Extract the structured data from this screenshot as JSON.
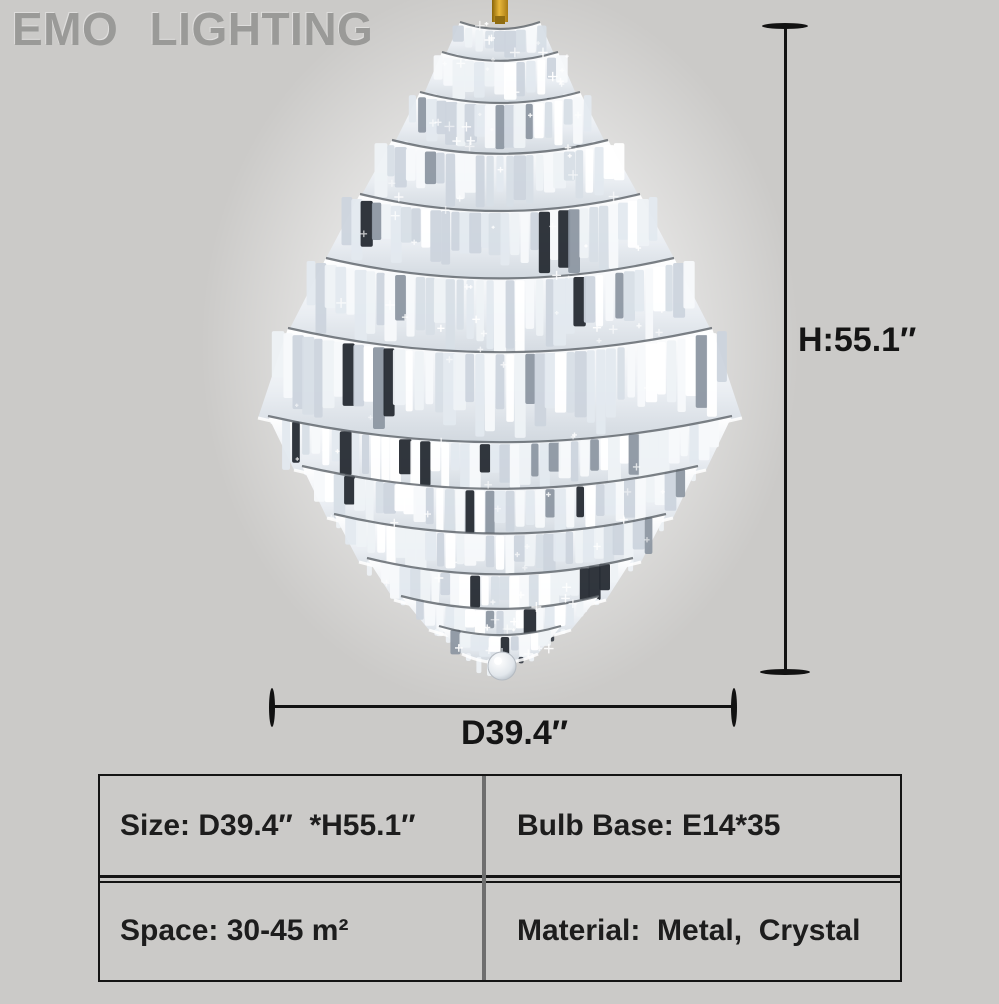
{
  "brand": {
    "logo_text": "EMO LIGHTING"
  },
  "dimensions": {
    "height_label": "H:55.1″",
    "diameter_label": "D39.4″"
  },
  "spec_table": {
    "size": "Size: D39.4″  *H55.1″",
    "bulb_base": "Bulb Base: E14*35",
    "space": "Space: 30-45 m²",
    "material": "Material:  Metal,  Crystal"
  },
  "colors": {
    "background": "#cbcac8",
    "dimension_line": "#121212",
    "text": "#1a1a1a",
    "logo": "#9a9a98",
    "table_column_divider": "#6e6e6e",
    "gold_stem": "#c9920f",
    "crystal_highlight": "#ffffff"
  }
}
